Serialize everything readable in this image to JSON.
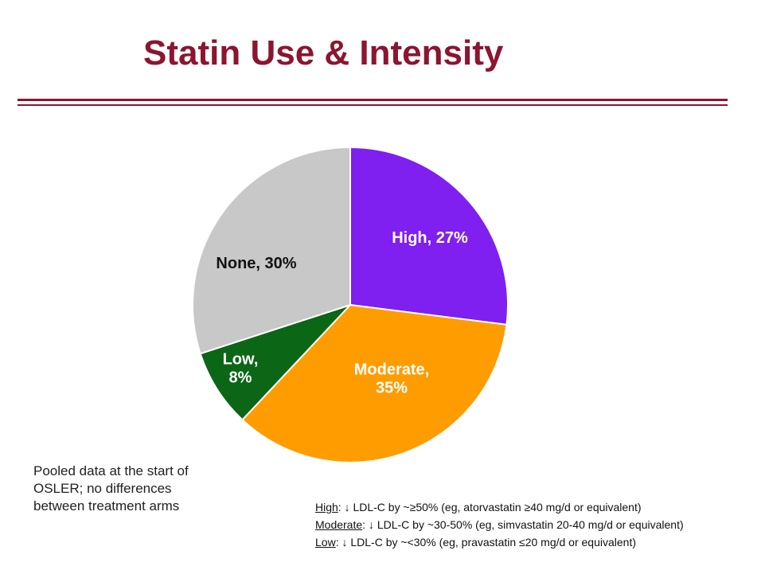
{
  "slide": {
    "title": "Statin Use & Intensity",
    "note": "Pooled data at the start of OSLER; no differences between treatment arms"
  },
  "chart_data": {
    "type": "pie",
    "title": "Statin Use & Intensity",
    "slices": [
      {
        "label": "High",
        "value": 27,
        "display_lines": [
          "High, 27%"
        ],
        "color": "#7f1ff0",
        "text_color": "#ffffff"
      },
      {
        "label": "Moderate",
        "value": 35,
        "display_lines": [
          "Moderate,",
          "35%"
        ],
        "color": "#ff9c00",
        "text_color": "#ffffff"
      },
      {
        "label": "Low",
        "value": 8,
        "display_lines": [
          "Low,",
          "8%"
        ],
        "color": "#0b6616",
        "text_color": "#ffffff"
      },
      {
        "label": "None",
        "value": 30,
        "display_lines": [
          "None, 30%"
        ],
        "color": "#c8c8c8",
        "text_color": "#111111"
      }
    ]
  },
  "legend": {
    "items": [
      {
        "term": "High",
        "rest": ": ↓ LDL-C by ~≥50% (eg, atorvastatin ≥40 mg/d or equivalent)"
      },
      {
        "term": "Moderate",
        "rest": ": ↓ LDL-C by ~30-50% (eg, simvastatin 20-40 mg/d or equivalent)"
      },
      {
        "term": "Low",
        "rest": ": ↓ LDL-C by ~<30% (eg, pravastatin ≤20 mg/d or equivalent)"
      }
    ]
  }
}
